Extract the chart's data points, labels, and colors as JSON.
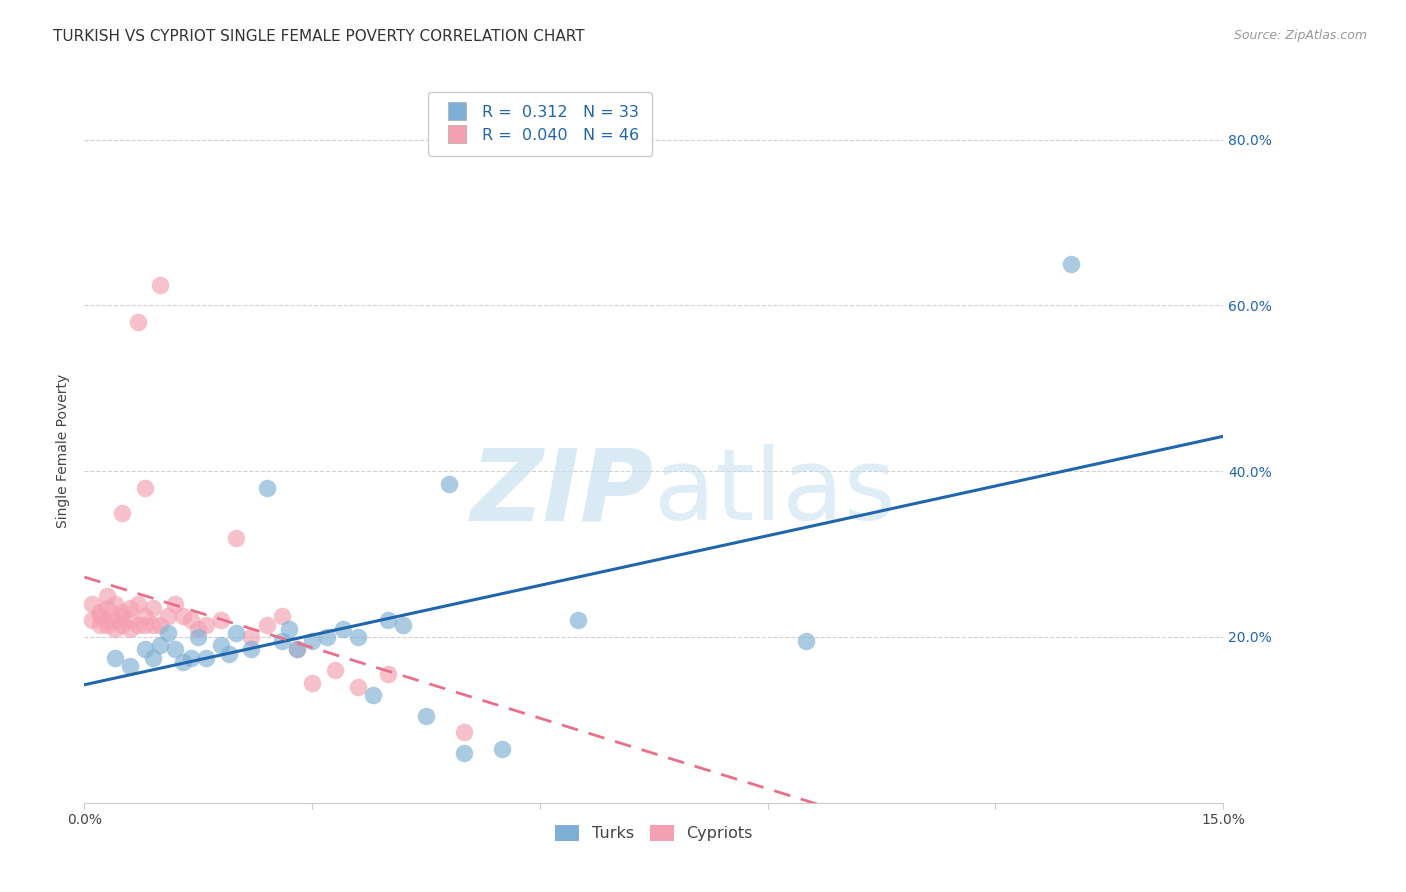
{
  "title": "TURKISH VS CYPRIOT SINGLE FEMALE POVERTY CORRELATION CHART",
  "source": "Source: ZipAtlas.com",
  "ylabel": "Single Female Poverty",
  "xlim": [
    0.0,
    0.15
  ],
  "ylim": [
    0.0,
    0.85
  ],
  "yticks_right": [
    0.2,
    0.4,
    0.6,
    0.8
  ],
  "turks_color": "#7eb0d5",
  "cypriots_color": "#f4a0b0",
  "turks_line_color": "#2166ac",
  "cypriots_line_color": "#e8708a",
  "background_color": "#ffffff",
  "grid_color": "#cccccc",
  "legend_R1": "R =  0.312",
  "legend_N1": "N = 33",
  "legend_R2": "R =  0.040",
  "legend_N2": "N = 46",
  "watermark_zip": "ZIP",
  "watermark_atlas": "atlas",
  "title_fontsize": 11,
  "axis_label_fontsize": 10,
  "tick_fontsize": 10,
  "turks_x": [
    0.004,
    0.006,
    0.008,
    0.009,
    0.01,
    0.011,
    0.012,
    0.013,
    0.014,
    0.015,
    0.016,
    0.018,
    0.019,
    0.02,
    0.022,
    0.024,
    0.026,
    0.027,
    0.028,
    0.03,
    0.032,
    0.034,
    0.036,
    0.038,
    0.04,
    0.042,
    0.045,
    0.048,
    0.05,
    0.055,
    0.065,
    0.095,
    0.13
  ],
  "turks_y": [
    0.175,
    0.165,
    0.185,
    0.175,
    0.19,
    0.205,
    0.185,
    0.17,
    0.175,
    0.2,
    0.175,
    0.19,
    0.18,
    0.205,
    0.185,
    0.38,
    0.195,
    0.21,
    0.185,
    0.195,
    0.2,
    0.21,
    0.2,
    0.13,
    0.22,
    0.215,
    0.105,
    0.385,
    0.06,
    0.065,
    0.22,
    0.195,
    0.65
  ],
  "cypriots_x": [
    0.001,
    0.001,
    0.002,
    0.002,
    0.002,
    0.003,
    0.003,
    0.003,
    0.003,
    0.004,
    0.004,
    0.004,
    0.005,
    0.005,
    0.005,
    0.005,
    0.006,
    0.006,
    0.006,
    0.007,
    0.007,
    0.007,
    0.008,
    0.008,
    0.008,
    0.009,
    0.009,
    0.01,
    0.01,
    0.011,
    0.012,
    0.013,
    0.014,
    0.015,
    0.016,
    0.018,
    0.02,
    0.022,
    0.024,
    0.026,
    0.028,
    0.03,
    0.033,
    0.036,
    0.04,
    0.05
  ],
  "cypriots_y": [
    0.22,
    0.24,
    0.215,
    0.225,
    0.23,
    0.215,
    0.22,
    0.235,
    0.25,
    0.21,
    0.22,
    0.24,
    0.215,
    0.225,
    0.23,
    0.35,
    0.21,
    0.22,
    0.235,
    0.215,
    0.24,
    0.58,
    0.215,
    0.225,
    0.38,
    0.215,
    0.235,
    0.215,
    0.625,
    0.225,
    0.24,
    0.225,
    0.22,
    0.21,
    0.215,
    0.22,
    0.32,
    0.2,
    0.215,
    0.225,
    0.185,
    0.145,
    0.16,
    0.14,
    0.155,
    0.085
  ]
}
